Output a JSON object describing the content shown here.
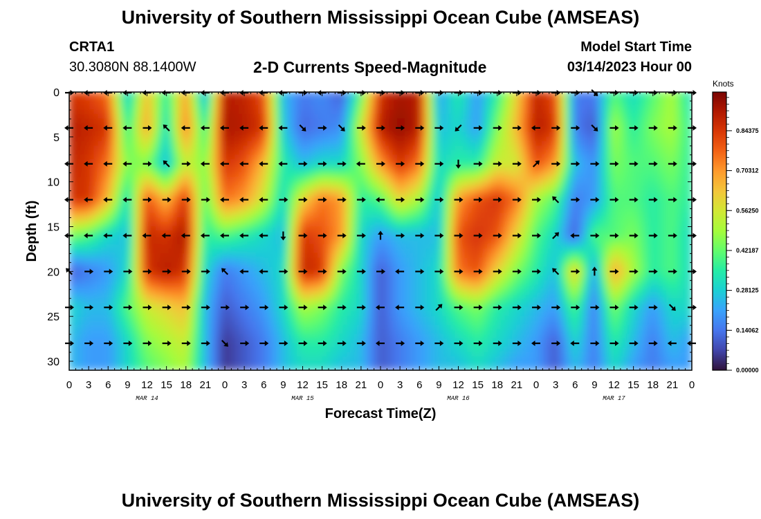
{
  "header": {
    "title": "University of Southern Mississippi Ocean Cube (AMSEAS)",
    "station": "CRTA1",
    "coords": "30.3080N  88.1400W",
    "subtitle": "2-D Currents Speed-Magnitude",
    "model_label": "Model Start Time",
    "model_date": "03/14/2023 Hour 00"
  },
  "footer": {
    "title": "University of Southern Mississippi Ocean Cube (AMSEAS)"
  },
  "chart_data": {
    "type": "heatmap",
    "title": "2-D Currents Speed-Magnitude",
    "xlabel": "Forecast Time(Z)",
    "ylabel": "Depth (ft)",
    "xlim": [
      0,
      96
    ],
    "ylim": [
      31,
      0
    ],
    "x_tick_labels": [
      "0",
      "3",
      "6",
      "9",
      "12",
      "15",
      "18",
      "21",
      "0",
      "3",
      "6",
      "9",
      "12",
      "15",
      "18",
      "21",
      "0",
      "3",
      "6",
      "9",
      "12",
      "15",
      "18",
      "21",
      "0",
      "3",
      "6",
      "9",
      "12",
      "15",
      "18",
      "21",
      "0"
    ],
    "date_labels": [
      {
        "label": "MAR 14",
        "hour": 12
      },
      {
        "label": "MAR 15",
        "hour": 36
      },
      {
        "label": "MAR 16",
        "hour": 60
      },
      {
        "label": "MAR 17",
        "hour": 84
      }
    ],
    "y_ticks": [
      0,
      5,
      10,
      15,
      20,
      25,
      30
    ],
    "colorbar": {
      "label": "Knots",
      "min": 0.0,
      "max": 0.98,
      "tick_values": [
        0.0,
        0.140625,
        0.28125,
        0.421875,
        0.5625,
        0.703125,
        0.84375
      ],
      "tick_labels": [
        "0.00000",
        "0.14062",
        "0.28125",
        "0.42187",
        "0.56250",
        "0.70312",
        "0.84375"
      ],
      "colormap": [
        "#30123b",
        "#4145ab",
        "#4675ed",
        "#39a2fc",
        "#1bcfd4",
        "#24eca6",
        "#61fc6c",
        "#a4fc3b",
        "#d1e834",
        "#f3c63a",
        "#fe9b2d",
        "#f36315",
        "#d93806",
        "#b11901",
        "#7a0402"
      ]
    },
    "depths_ft": [
      0,
      4,
      8,
      12,
      16,
      20,
      24,
      28,
      31
    ],
    "speed_rows": [
      {
        "depth": 0,
        "values": [
          0.85,
          0.82,
          0.75,
          0.25,
          0.65,
          0.35,
          0.7,
          0.2,
          0.9,
          0.88,
          0.8,
          0.25,
          0.15,
          0.18,
          0.1,
          0.4,
          0.85,
          0.92,
          0.9,
          0.2,
          0.35,
          0.2,
          0.35,
          0.6,
          0.88,
          0.8,
          0.15,
          0.15,
          0.4,
          0.3,
          0.4,
          0.5,
          0.3
        ]
      },
      {
        "depth": 4,
        "values": [
          0.9,
          0.88,
          0.85,
          0.35,
          0.7,
          0.3,
          0.75,
          0.35,
          0.92,
          0.9,
          0.85,
          0.28,
          0.12,
          0.15,
          0.18,
          0.55,
          0.9,
          0.95,
          0.9,
          0.25,
          0.3,
          0.2,
          0.45,
          0.65,
          0.9,
          0.85,
          0.15,
          0.1,
          0.5,
          0.35,
          0.45,
          0.5,
          0.35
        ]
      },
      {
        "depth": 8,
        "values": [
          0.88,
          0.85,
          0.75,
          0.45,
          0.45,
          0.25,
          0.55,
          0.45,
          0.85,
          0.8,
          0.65,
          0.35,
          0.25,
          0.3,
          0.3,
          0.45,
          0.7,
          0.85,
          0.75,
          0.3,
          0.35,
          0.35,
          0.55,
          0.55,
          0.8,
          0.7,
          0.25,
          0.18,
          0.45,
          0.4,
          0.4,
          0.45,
          0.35
        ]
      },
      {
        "depth": 12,
        "values": [
          0.85,
          0.85,
          0.65,
          0.3,
          0.8,
          0.65,
          0.85,
          0.4,
          0.75,
          0.7,
          0.55,
          0.3,
          0.6,
          0.75,
          0.7,
          0.35,
          0.4,
          0.6,
          0.5,
          0.25,
          0.7,
          0.8,
          0.85,
          0.75,
          0.5,
          0.4,
          0.15,
          0.2,
          0.4,
          0.4,
          0.35,
          0.4,
          0.35
        ]
      },
      {
        "depth": 16,
        "values": [
          0.45,
          0.4,
          0.3,
          0.25,
          0.88,
          0.85,
          0.92,
          0.35,
          0.4,
          0.35,
          0.3,
          0.25,
          0.85,
          0.8,
          0.7,
          0.3,
          0.2,
          0.25,
          0.25,
          0.25,
          0.8,
          0.85,
          0.8,
          0.6,
          0.4,
          0.3,
          0.1,
          0.4,
          0.4,
          0.45,
          0.35,
          0.4,
          0.3
        ]
      },
      {
        "depth": 20,
        "values": [
          0.1,
          0.15,
          0.2,
          0.3,
          0.85,
          0.9,
          0.85,
          0.3,
          0.15,
          0.2,
          0.25,
          0.3,
          0.88,
          0.85,
          0.45,
          0.3,
          0.1,
          0.2,
          0.25,
          0.3,
          0.75,
          0.8,
          0.6,
          0.45,
          0.35,
          0.25,
          0.65,
          0.2,
          0.7,
          0.5,
          0.35,
          0.4,
          0.3
        ]
      },
      {
        "depth": 24,
        "values": [
          0.3,
          0.25,
          0.25,
          0.4,
          0.55,
          0.6,
          0.65,
          0.25,
          0.1,
          0.15,
          0.2,
          0.3,
          0.5,
          0.45,
          0.35,
          0.3,
          0.1,
          0.2,
          0.25,
          0.3,
          0.4,
          0.45,
          0.35,
          0.3,
          0.25,
          0.2,
          0.4,
          0.15,
          0.45,
          0.3,
          0.2,
          0.3,
          0.3
        ]
      },
      {
        "depth": 28,
        "values": [
          0.25,
          0.2,
          0.2,
          0.3,
          0.45,
          0.5,
          0.55,
          0.25,
          0.05,
          0.1,
          0.15,
          0.25,
          0.35,
          0.35,
          0.3,
          0.25,
          0.1,
          0.15,
          0.2,
          0.25,
          0.3,
          0.35,
          0.3,
          0.25,
          0.2,
          0.1,
          0.3,
          0.15,
          0.35,
          0.25,
          0.15,
          0.25,
          0.2
        ]
      },
      {
        "depth": 31,
        "values": [
          0.25,
          0.2,
          0.2,
          0.3,
          0.4,
          0.45,
          0.5,
          0.25,
          0.05,
          0.1,
          0.15,
          0.25,
          0.3,
          0.3,
          0.25,
          0.25,
          0.1,
          0.15,
          0.2,
          0.25,
          0.25,
          0.3,
          0.25,
          0.2,
          0.2,
          0.1,
          0.25,
          0.15,
          0.3,
          0.2,
          0.15,
          0.2,
          0.2
        ]
      }
    ],
    "vector_depths_ft": [
      0,
      4,
      8,
      12,
      16,
      20,
      24,
      28
    ],
    "vector_rows": [
      {
        "depth": 0,
        "dirs": [
          "E",
          "W",
          "W",
          "W",
          "W",
          "W",
          "W",
          "W",
          "W",
          "W",
          "W",
          "W",
          "E",
          "W",
          "E",
          "E",
          "E",
          "E",
          "E",
          "E",
          "E",
          "E",
          "E",
          "E",
          "E",
          "E",
          "E",
          "SE",
          "E",
          "E",
          "E",
          "E",
          "E"
        ]
      },
      {
        "depth": 4,
        "dirs": [
          "W",
          "W",
          "W",
          "W",
          "E",
          "NW",
          "W",
          "W",
          "W",
          "W",
          "W",
          "W",
          "SE",
          "E",
          "SE",
          "E",
          "E",
          "E",
          "E",
          "E",
          "SW",
          "E",
          "E",
          "E",
          "W",
          "E",
          "E",
          "SE",
          "E",
          "E",
          "E",
          "E",
          "E"
        ]
      },
      {
        "depth": 8,
        "dirs": [
          "W",
          "W",
          "W",
          "W",
          "E",
          "NW",
          "E",
          "W",
          "W",
          "W",
          "W",
          "W",
          "E",
          "E",
          "E",
          "W",
          "E",
          "E",
          "E",
          "E",
          "S",
          "E",
          "E",
          "E",
          "NE",
          "E",
          "E",
          "E",
          "E",
          "E",
          "E",
          "E",
          "E"
        ]
      },
      {
        "depth": 12,
        "dirs": [
          "W",
          "W",
          "W",
          "W",
          "E",
          "E",
          "E",
          "E",
          "W",
          "W",
          "W",
          "E",
          "E",
          "E",
          "E",
          "E",
          "W",
          "E",
          "E",
          "E",
          "E",
          "E",
          "E",
          "E",
          "E",
          "NW",
          "E",
          "E",
          "E",
          "E",
          "E",
          "E",
          "E"
        ]
      },
      {
        "depth": 16,
        "dirs": [
          "W",
          "W",
          "W",
          "W",
          "W",
          "W",
          "W",
          "W",
          "W",
          "W",
          "W",
          "S",
          "E",
          "E",
          "E",
          "E",
          "N",
          "E",
          "E",
          "E",
          "E",
          "E",
          "E",
          "E",
          "E",
          "NE",
          "W",
          "E",
          "E",
          "E",
          "E",
          "E",
          "E"
        ]
      },
      {
        "depth": 20,
        "dirs": [
          "NW",
          "E",
          "E",
          "E",
          "E",
          "E",
          "E",
          "E",
          "NW",
          "W",
          "W",
          "E",
          "E",
          "E",
          "E",
          "E",
          "E",
          "W",
          "E",
          "E",
          "E",
          "E",
          "E",
          "E",
          "E",
          "NW",
          "E",
          "N",
          "E",
          "E",
          "E",
          "E",
          "E"
        ]
      },
      {
        "depth": 24,
        "dirs": [
          "E",
          "E",
          "E",
          "E",
          "E",
          "E",
          "E",
          "E",
          "E",
          "E",
          "E",
          "E",
          "E",
          "E",
          "E",
          "E",
          "W",
          "W",
          "E",
          "NE",
          "E",
          "E",
          "E",
          "E",
          "E",
          "E",
          "E",
          "E",
          "E",
          "E",
          "E",
          "SE",
          "E"
        ]
      },
      {
        "depth": 28,
        "dirs": [
          "E",
          "E",
          "E",
          "E",
          "E",
          "E",
          "E",
          "E",
          "SE",
          "E",
          "E",
          "E",
          "E",
          "E",
          "E",
          "E",
          "W",
          "E",
          "E",
          "E",
          "E",
          "E",
          "E",
          "E",
          "W",
          "E",
          "W",
          "E",
          "E",
          "E",
          "E",
          "W",
          "W"
        ]
      }
    ]
  }
}
